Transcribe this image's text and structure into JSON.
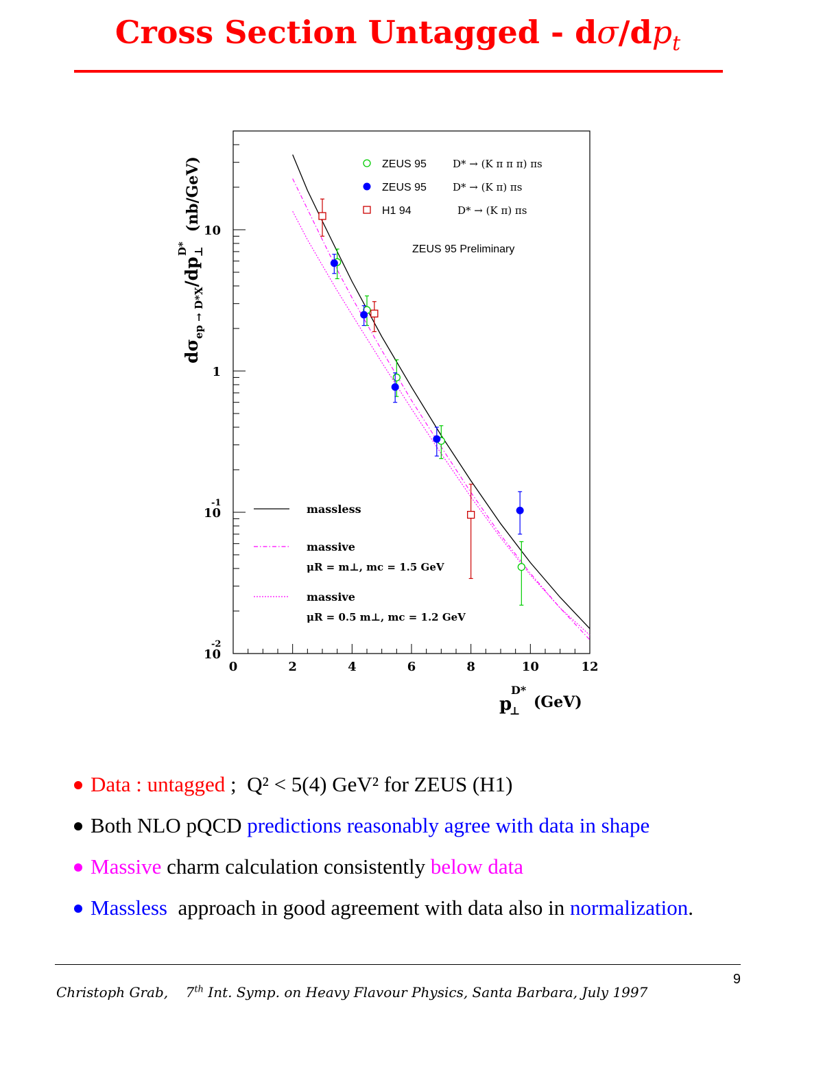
{
  "slide": {
    "title_text": "Cross Section Untagged - d",
    "title_sigma": "σ",
    "title_slash": "/d",
    "title_p": "p",
    "title_t": "t",
    "page_number": "9",
    "footer_author": "Christoph Grab,",
    "footer_ordinal": "7",
    "footer_ordinal_suffix": "th",
    "footer_event": "Int. Symp. on Heavy Flavour Physics, Santa Barbara, July 1997"
  },
  "bullets": [
    {
      "dot_color": "#ff0000",
      "parts": [
        {
          "text": "Data : ",
          "color": "#ff0000"
        },
        {
          "text": "untagged",
          "color": "#ff0000"
        },
        {
          "text": " ;  Q² < 5(4) GeV² for ZEUS (H1)",
          "color": "#000000"
        }
      ]
    },
    {
      "dot_color": "#000000",
      "parts": [
        {
          "text": "Both NLO pQCD ",
          "color": "#000000"
        },
        {
          "text": "predictions reasonably agree with data in shape",
          "color": "#0000ff"
        }
      ]
    },
    {
      "dot_color": "#ff00ff",
      "parts": [
        {
          "text": "Massive",
          "color": "#ff00ff"
        },
        {
          "text": " charm calculation consistently ",
          "color": "#000000"
        },
        {
          "text": "below data",
          "color": "#ff00ff"
        }
      ]
    },
    {
      "dot_color": "#0000ff",
      "parts": [
        {
          "text": "Massless",
          "color": "#0000ff"
        },
        {
          "text": "  approach in good agreement with data also in ",
          "color": "#000000"
        },
        {
          "text": "normalization",
          "color": "#0000ff"
        },
        {
          "text": ".",
          "color": "#000000"
        }
      ]
    }
  ],
  "chart_data": {
    "type": "scatter",
    "xlim": [
      0,
      12
    ],
    "ylim": [
      0.01,
      50
    ],
    "yscale": "log",
    "x_ticks": [
      "0",
      "2",
      "4",
      "6",
      "8",
      "10",
      "12"
    ],
    "y_tick_labels": [
      {
        "value": 10,
        "base": "10",
        "exp": ""
      },
      {
        "value": 1,
        "base": "1",
        "exp": ""
      },
      {
        "value": 0.1,
        "base": "10",
        "exp": "-1"
      },
      {
        "value": 0.01,
        "base": "10",
        "exp": "-2"
      }
    ],
    "xlabel_main": "p",
    "xlabel_sub": "⊥",
    "xlabel_sup": "D*",
    "xlabel_unit": "(GeV)",
    "ylabel_pre": "dσ",
    "ylabel_sub": "ep → D*X",
    "ylabel_mid": "/dp",
    "ylabel_sub2": "⊥",
    "ylabel_sup": "D*",
    "ylabel_unit": "(nb/GeV)",
    "annotation": "ZEUS 95  Preliminary",
    "legend_markers": [
      {
        "name": "ZEUS 95",
        "decay": "D* → (K π π π) πs",
        "marker": "open-circle",
        "color": "#00cc00"
      },
      {
        "name": "ZEUS 95",
        "decay": "D* → (K π) πs",
        "marker": "filled-circle",
        "color": "#0000ff"
      },
      {
        "name": "H1 94",
        "decay": "D* → (K π) πs",
        "marker": "open-square",
        "color": "#cc0000"
      }
    ],
    "legend_curves": [
      {
        "name": "massless",
        "style": "solid",
        "color": "#000000",
        "sub": ""
      },
      {
        "name": "massive",
        "style": "dashdot",
        "color": "#ff00ff",
        "sub": "μR = m⊥,   mc = 1.5 GeV"
      },
      {
        "name": "massive",
        "style": "dotted",
        "color": "#ff00ff",
        "sub": "μR = 0.5 m⊥,  mc = 1.2 GeV"
      }
    ],
    "series": [
      {
        "name": "ZEUS 95 D* → (K π π π) πs",
        "marker": "open-circle",
        "color": "#00cc00",
        "points": [
          {
            "x": 3.5,
            "y": 5.9,
            "ylo": 4.5,
            "yhi": 7.3
          },
          {
            "x": 4.5,
            "y": 2.7,
            "ylo": 2.1,
            "yhi": 3.4
          },
          {
            "x": 5.5,
            "y": 0.9,
            "ylo": 0.66,
            "yhi": 1.2
          },
          {
            "x": 7.0,
            "y": 0.32,
            "ylo": 0.24,
            "yhi": 0.41
          },
          {
            "x": 9.7,
            "y": 0.041,
            "ylo": 0.022,
            "yhi": 0.062
          }
        ]
      },
      {
        "name": "ZEUS 95 D* → (K π) πs",
        "marker": "filled-circle",
        "color": "#0000ff",
        "points": [
          {
            "x": 3.4,
            "y": 5.8,
            "ylo": 4.9,
            "yhi": 6.7
          },
          {
            "x": 4.4,
            "y": 2.5,
            "ylo": 2.1,
            "yhi": 2.9
          },
          {
            "x": 5.45,
            "y": 0.77,
            "ylo": 0.6,
            "yhi": 0.97
          },
          {
            "x": 6.85,
            "y": 0.33,
            "ylo": 0.25,
            "yhi": 0.4
          },
          {
            "x": 9.65,
            "y": 0.103,
            "ylo": 0.07,
            "yhi": 0.14
          }
        ]
      },
      {
        "name": "H1 94 D* → (K π) πs",
        "marker": "open-square",
        "color": "#cc0000",
        "points": [
          {
            "x": 3.0,
            "y": 12.5,
            "ylo": 9.0,
            "yhi": 16.5
          },
          {
            "x": 4.75,
            "y": 2.55,
            "ylo": 1.9,
            "yhi": 3.1
          },
          {
            "x": 8.0,
            "y": 0.096,
            "ylo": 0.034,
            "yhi": 0.158
          }
        ]
      }
    ],
    "curves": [
      {
        "name": "massless",
        "style": "solid",
        "color": "#000000",
        "x": [
          2.0,
          2.5,
          3.0,
          3.5,
          4.0,
          5.0,
          6.0,
          7.0,
          8.0,
          9.0,
          10.0,
          11.0,
          12.0
        ],
        "y": [
          34,
          19,
          11.5,
          7.0,
          4.3,
          1.75,
          0.77,
          0.35,
          0.167,
          0.083,
          0.044,
          0.025,
          0.015
        ]
      },
      {
        "name": "massive μR = m⊥, mc = 1.5 GeV",
        "style": "dashdot",
        "color": "#ff00ff",
        "x": [
          2.0,
          2.5,
          3.0,
          3.5,
          4.0,
          5.0,
          6.0,
          7.0,
          8.0,
          9.0,
          10.0,
          11.0,
          12.0
        ],
        "y": [
          23,
          14,
          8.5,
          5.2,
          3.3,
          1.4,
          0.62,
          0.29,
          0.138,
          0.069,
          0.037,
          0.021,
          0.0125
        ]
      },
      {
        "name": "massive μR = 0.5 m⊥, mc = 1.2 GeV",
        "style": "dotted",
        "color": "#ff00ff",
        "x": [
          2.0,
          2.5,
          3.0,
          3.5,
          4.0,
          5.0,
          6.0,
          7.0,
          8.0,
          9.0,
          10.0,
          11.0,
          12.0
        ],
        "y": [
          13.5,
          8.5,
          5.6,
          3.7,
          2.5,
          1.15,
          0.54,
          0.26,
          0.128,
          0.066,
          0.036,
          0.021,
          0.0135
        ]
      }
    ]
  }
}
